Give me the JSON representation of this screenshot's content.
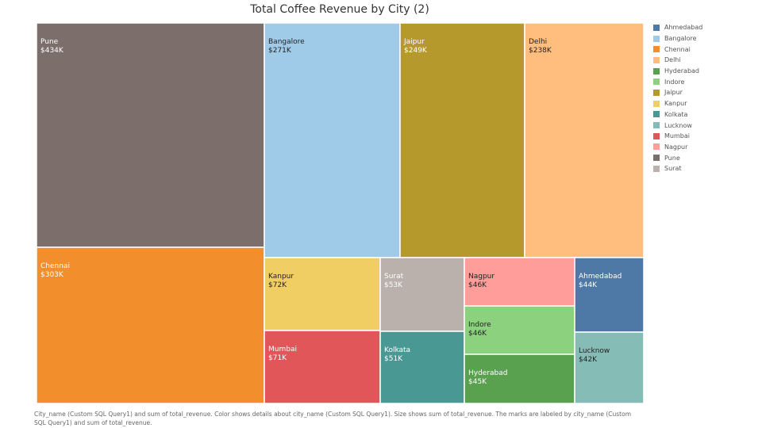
{
  "chart_data": {
    "type": "treemap",
    "title": "Total Coffee Revenue by City (2)",
    "value_format": "$K",
    "cells": [
      {
        "city": "Pune",
        "label": "$434K",
        "value": 434,
        "color": "#7b6e6b"
      },
      {
        "city": "Chennai",
        "label": "$303K",
        "value": 303,
        "color": "#f28e2b"
      },
      {
        "city": "Bangalore",
        "label": "$271K",
        "value": 271,
        "color": "#a0cbe8"
      },
      {
        "city": "Jaipur",
        "label": "$249K",
        "value": 249,
        "color": "#b6992d"
      },
      {
        "city": "Delhi",
        "label": "$238K",
        "value": 238,
        "color": "#ffbe7d"
      },
      {
        "city": "Kanpur",
        "label": "$72K",
        "value": 72,
        "color": "#f1ce63"
      },
      {
        "city": "Mumbai",
        "label": "$71K",
        "value": 71,
        "color": "#e15759"
      },
      {
        "city": "Surat",
        "label": "$53K",
        "value": 53,
        "color": "#bab0ac"
      },
      {
        "city": "Kolkata",
        "label": "$51K",
        "value": 51,
        "color": "#499894"
      },
      {
        "city": "Nagpur",
        "label": "$46K",
        "value": 46,
        "color": "#ff9d9a"
      },
      {
        "city": "Indore",
        "label": "$46K",
        "value": 46,
        "color": "#8cd17d"
      },
      {
        "city": "Hyderabad",
        "label": "$45K",
        "value": 45,
        "color": "#59a14f"
      },
      {
        "city": "Ahmedabad",
        "label": "$44K",
        "value": 44,
        "color": "#4e79a7"
      },
      {
        "city": "Lucknow",
        "label": "$42K",
        "value": 42,
        "color": "#86bcb6"
      }
    ],
    "legend": [
      {
        "name": "Ahmedabad",
        "color": "#4e79a7"
      },
      {
        "name": "Bangalore",
        "color": "#a0cbe8"
      },
      {
        "name": "Chennai",
        "color": "#f28e2b"
      },
      {
        "name": "Delhi",
        "color": "#ffbe7d"
      },
      {
        "name": "Hyderabad",
        "color": "#59a14f"
      },
      {
        "name": "Indore",
        "color": "#8cd17d"
      },
      {
        "name": "Jaipur",
        "color": "#b6992d"
      },
      {
        "name": "Kanpur",
        "color": "#f1ce63"
      },
      {
        "name": "Kolkata",
        "color": "#499894"
      },
      {
        "name": "Lucknow",
        "color": "#86bcb6"
      },
      {
        "name": "Mumbai",
        "color": "#e15759"
      },
      {
        "name": "Nagpur",
        "color": "#ff9d9a"
      },
      {
        "name": "Pune",
        "color": "#79706e"
      },
      {
        "name": "Surat",
        "color": "#bab0ac"
      }
    ],
    "legend_placement": "right"
  },
  "footnote": "City_name (Custom SQL Query1) and sum of total_revenue.  Color shows details about city_name (Custom SQL Query1).  Size shows sum of total_revenue.  The marks are labeled by city_name (Custom SQL Query1) and sum of total_revenue."
}
